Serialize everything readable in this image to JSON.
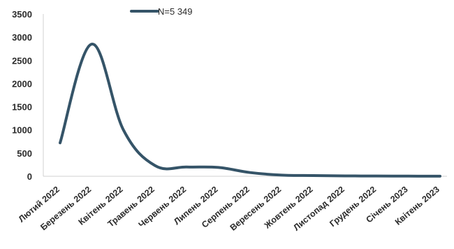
{
  "chart_data": {
    "type": "line",
    "title": "",
    "xlabel": "",
    "ylabel": "",
    "ylim": [
      0,
      3500
    ],
    "yticks": [
      "0",
      "500",
      "1000",
      "1500",
      "2000",
      "2500",
      "3000",
      "3500"
    ],
    "categories": [
      "Лютий 2022",
      "Березень 2022",
      "Квітень 2022",
      "Травень 2022",
      "Червень 2022",
      "Липень 2022",
      "Серпень 2022",
      "Вересень 2022",
      "Жовтень 2022",
      "Листопад 2022",
      "Грудень 2022",
      "Січень 2023",
      "Квітень 2023"
    ],
    "series": [
      {
        "name": "N=5 349",
        "color": "#355468",
        "values": [
          720,
          2850,
          1000,
          230,
          200,
          190,
          80,
          25,
          15,
          8,
          5,
          3,
          2
        ]
      }
    ],
    "legend_position": "top",
    "grid": false
  }
}
